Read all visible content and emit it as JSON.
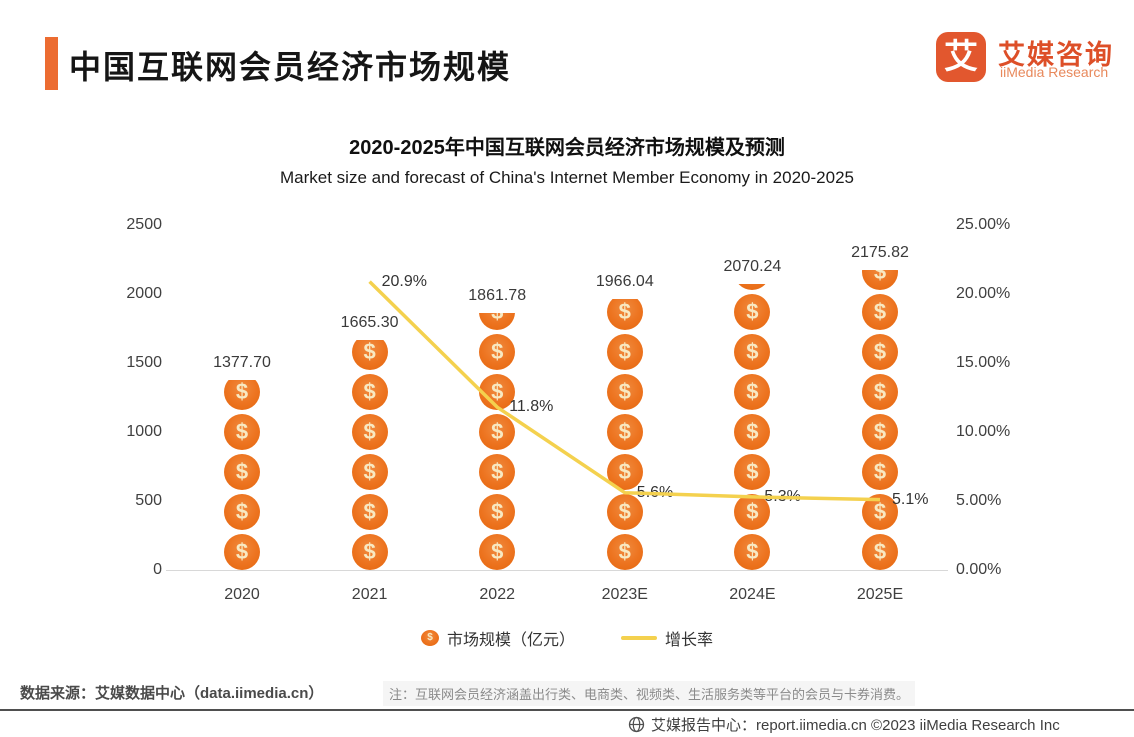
{
  "header": {
    "title": "中国互联网会员经济市场规模"
  },
  "logo": {
    "mark": "艾",
    "name_cn": "艾媒咨询",
    "name_en": "iiMedia Research"
  },
  "chart_data": {
    "type": "bar+line",
    "title": "2020-2025年中国互联网会员经济市场规模及预测",
    "subtitle": "Market size and forecast of China's Internet Member Economy in 2020-2025",
    "categories": [
      "2020",
      "2021",
      "2022",
      "2023E",
      "2024E",
      "2025E"
    ],
    "series": [
      {
        "name": "市场规模（亿元）",
        "type": "bar",
        "axis": "left",
        "color": "#ED7420",
        "values": [
          1377.7,
          1665.3,
          1861.78,
          1966.04,
          2070.24,
          2175.82
        ],
        "labels": [
          "1377.70",
          "1665.30",
          "1861.78",
          "1966.04",
          "2070.24",
          "2175.82"
        ]
      },
      {
        "name": "增长率",
        "type": "line",
        "axis": "right",
        "color": "#F4D14E",
        "values": [
          null,
          20.9,
          11.8,
          5.6,
          5.3,
          5.1
        ],
        "labels": [
          null,
          "20.9%",
          "11.8%",
          "5.6%",
          "5.3%",
          "5.1%"
        ]
      }
    ],
    "left_axis": {
      "ticks": [
        "2500",
        "2000",
        "1500",
        "1000",
        "500",
        "0"
      ],
      "range": [
        0,
        2500
      ]
    },
    "right_axis": {
      "ticks": [
        "25.00%",
        "20.00%",
        "15.00%",
        "10.00%",
        "5.00%",
        "0.00%"
      ],
      "range": [
        0,
        25
      ]
    },
    "grid": false,
    "legend_position": "bottom"
  },
  "legend": {
    "items": [
      {
        "icon": "coin-icon",
        "label": "市场规模（亿元）"
      },
      {
        "icon": "line-icon",
        "label": "增长率"
      }
    ]
  },
  "source": {
    "label": "数据来源：艾媒数据中心（data.iimedia.cn）",
    "note": "注：互联网会员经济涵盖出行类、电商类、视频类、生活服务类等平台的会员与卡券消费。"
  },
  "footer": {
    "label": "艾媒报告中心：report.iimedia.cn  ©2023  iiMedia Research Inc"
  }
}
